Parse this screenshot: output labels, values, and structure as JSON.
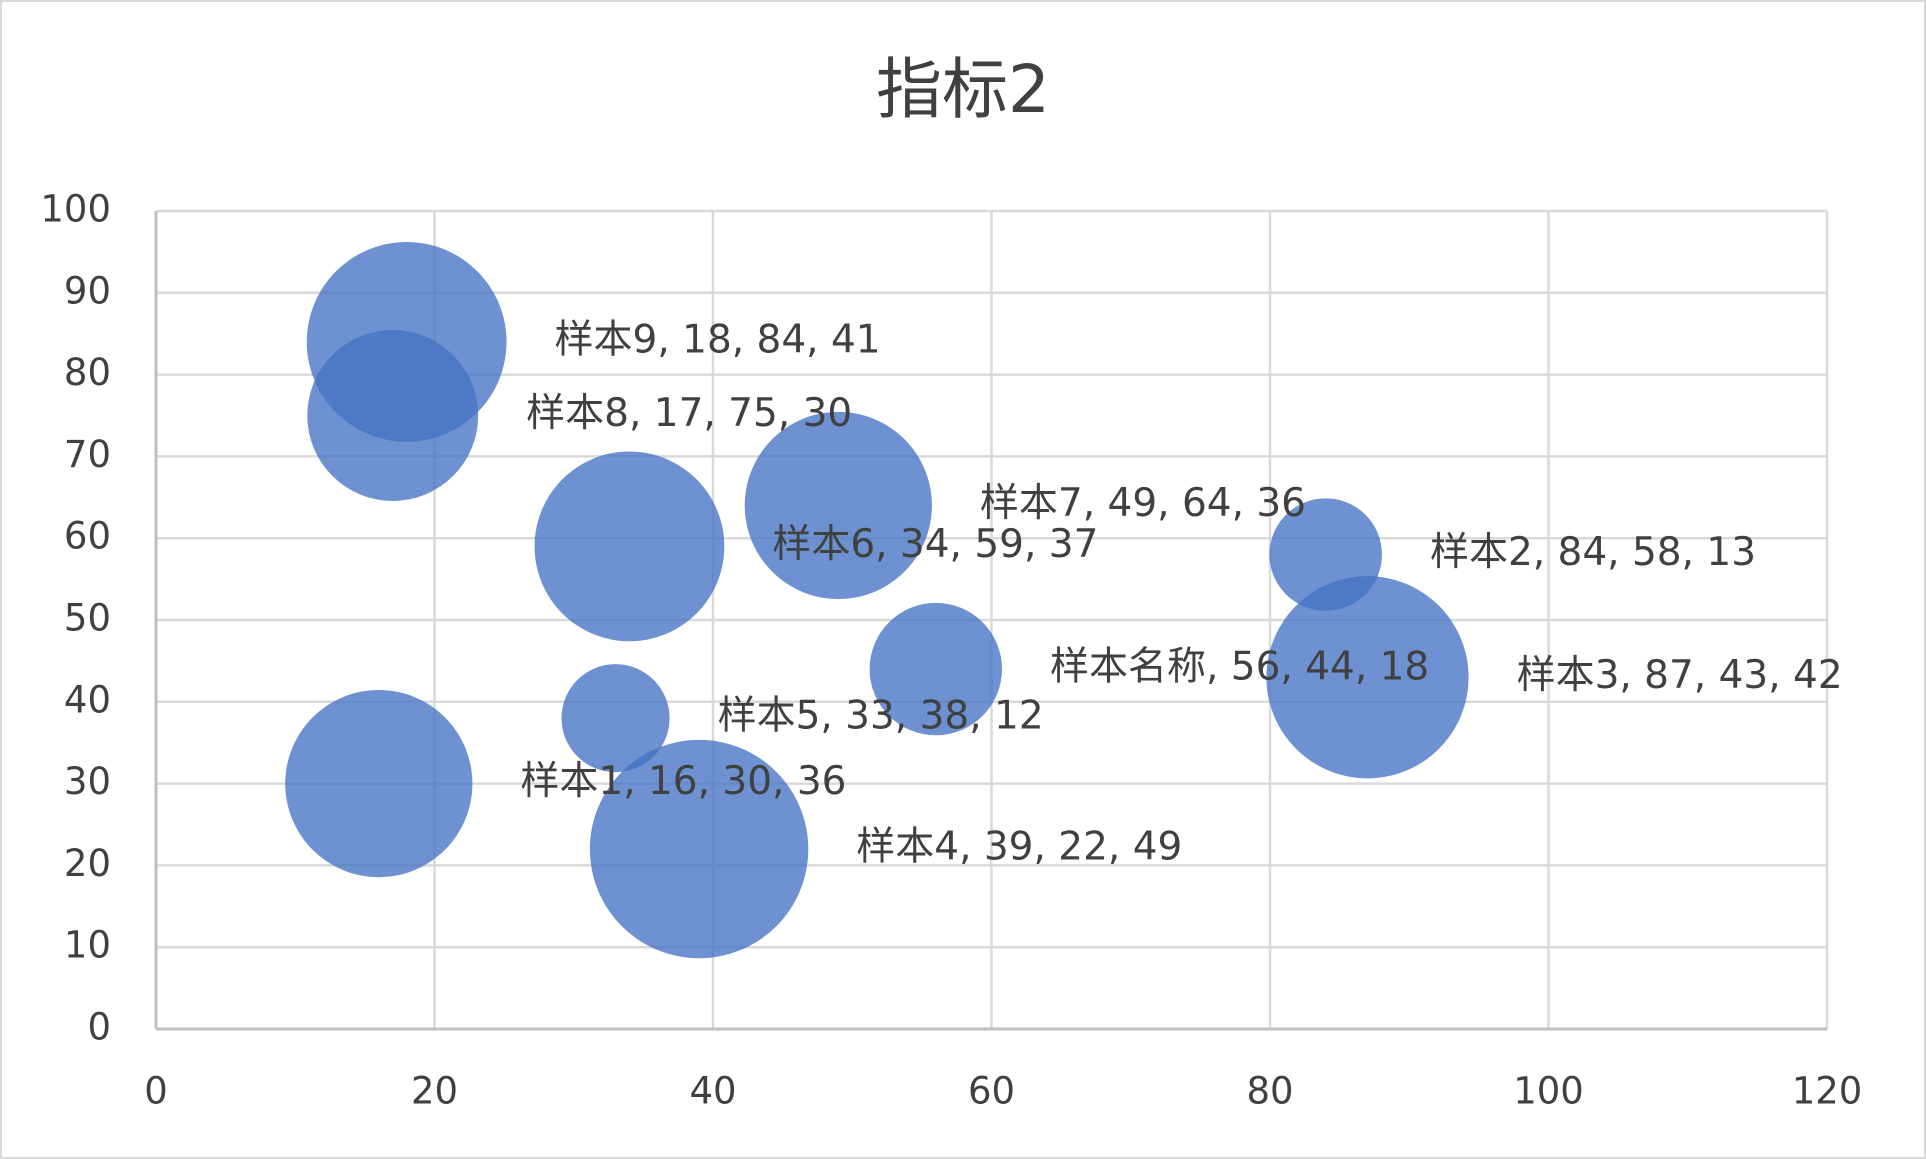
{
  "chart_data": {
    "type": "bubble",
    "title": "指标2",
    "series": [
      {
        "name": "指标2",
        "color": "#4472c4",
        "categories": [
          "样本1",
          "样本2",
          "样本3",
          "样本4",
          "样本5",
          "样本6",
          "样本7",
          "样本8",
          "样本9",
          "样本名称"
        ],
        "x": [
          16,
          84,
          87,
          39,
          33,
          34,
          49,
          17,
          18,
          56
        ],
        "values": [
          30,
          58,
          43,
          22,
          38,
          59,
          64,
          75,
          84,
          44
        ],
        "sizes": [
          36,
          13,
          42,
          49,
          12,
          37,
          36,
          30,
          41,
          18
        ],
        "value_labels": [
          "样本1, 16, 30, 36",
          "样本2, 84, 58, 13",
          "样本3, 87, 43, 42",
          "样本4, 39, 22, 49",
          "样本5, 33, 38, 12",
          "样本6, 34, 59, 37",
          "样本7, 49, 64, 36",
          "样本8, 17, 75, 30",
          "样本9, 18, 84, 41",
          "样本名称, 56, 44, 18"
        ]
      }
    ],
    "xlim": [
      0,
      120
    ],
    "xticks": [
      0,
      20,
      40,
      60,
      80,
      100,
      120
    ],
    "ylim": [
      0,
      100
    ],
    "yticks": [
      0,
      10,
      20,
      30,
      40,
      50,
      60,
      70,
      80,
      90,
      100
    ],
    "grid": true
  }
}
